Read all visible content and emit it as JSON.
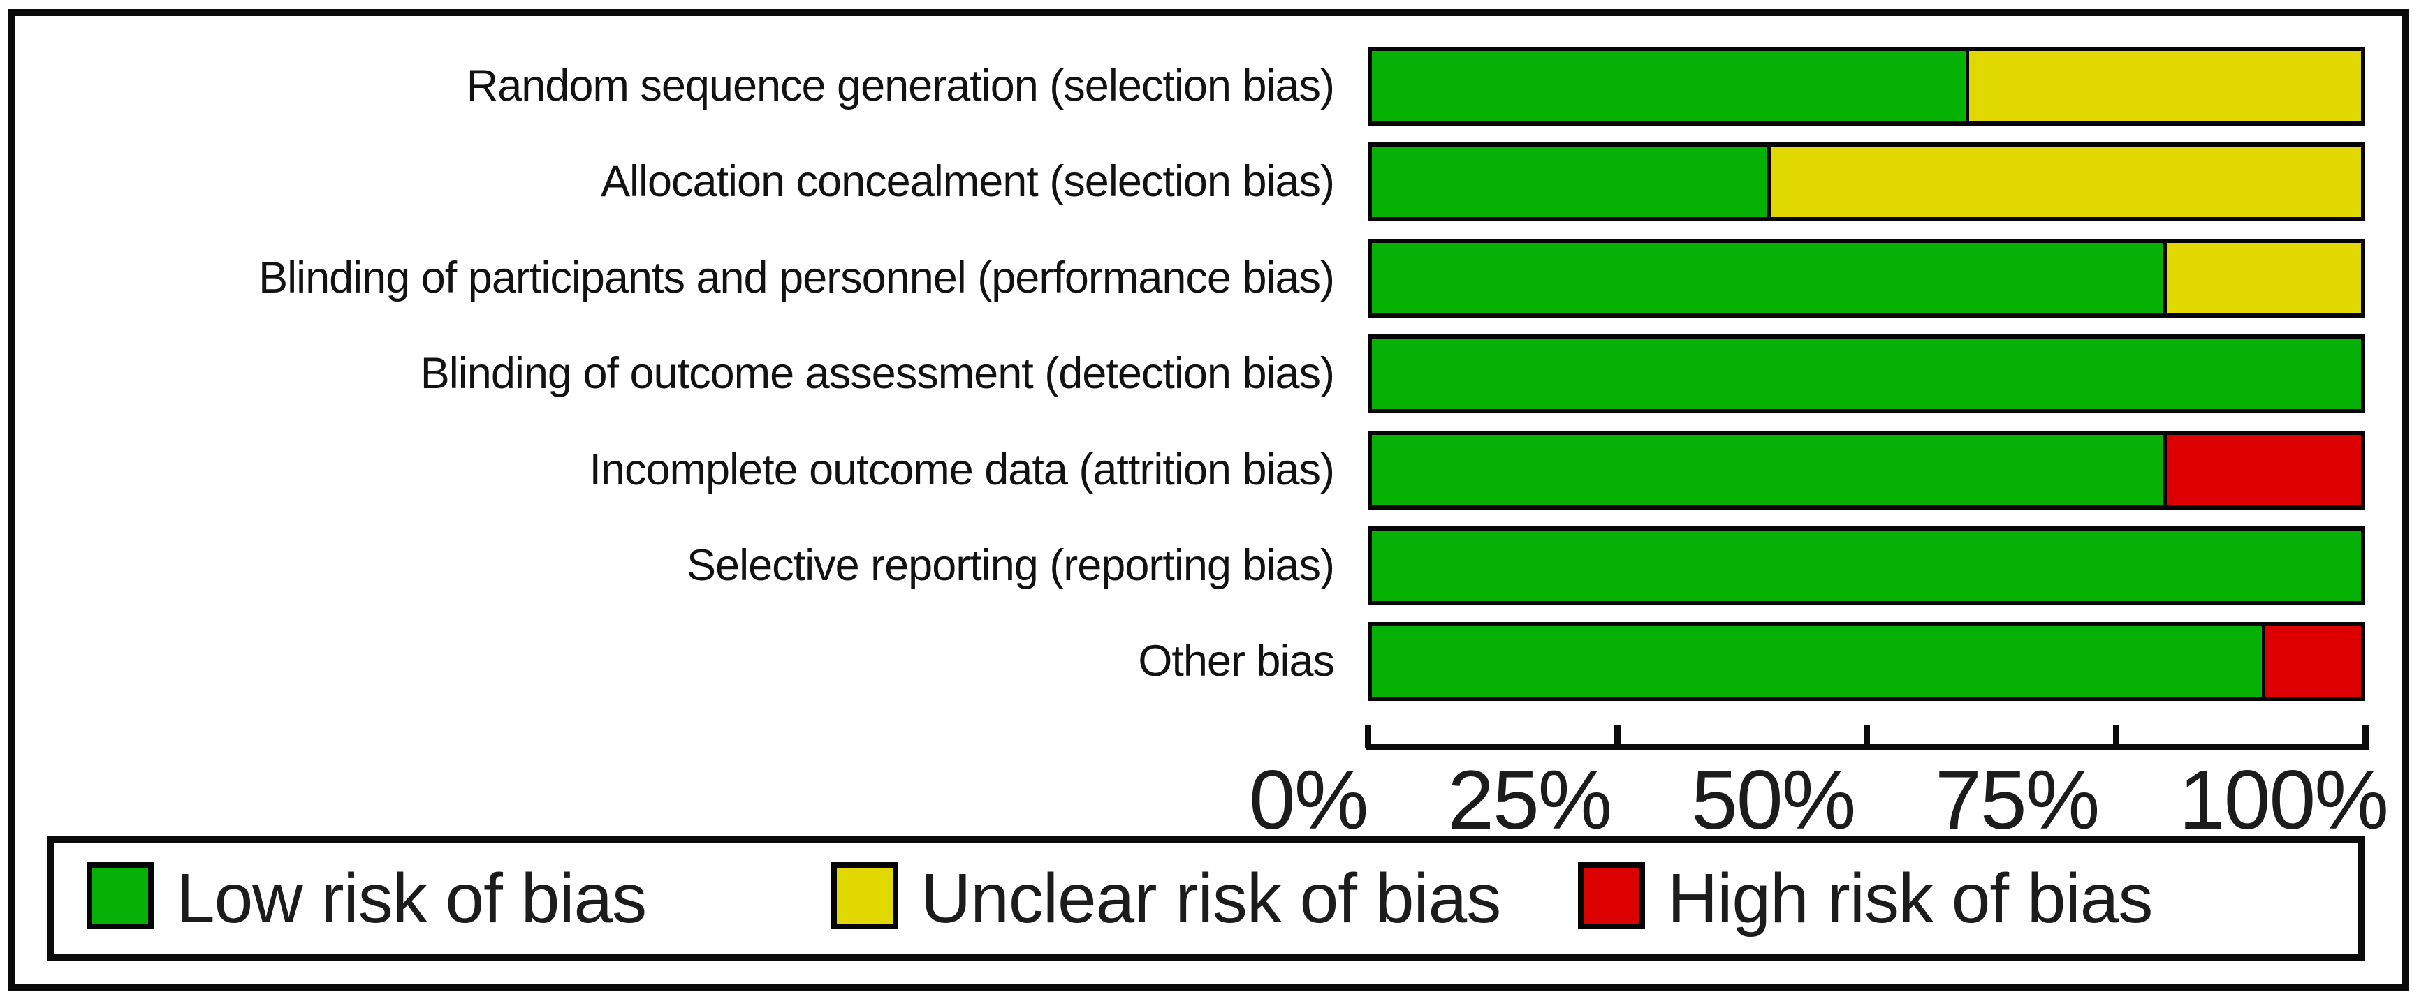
{
  "chart_data": {
    "type": "bar",
    "orientation": "horizontal-stacked",
    "title": "",
    "xlabel": "",
    "ylabel": "",
    "categories": [
      "Random sequence generation (selection bias)",
      "Allocation concealment (selection bias)",
      "Blinding of participants and personnel (performance bias)",
      "Blinding of outcome assessment (detection bias)",
      "Incomplete outcome data (attrition bias)",
      "Selective reporting (reporting bias)",
      "Other bias"
    ],
    "series": [
      {
        "name": "Low risk of bias",
        "color": "#04b104",
        "values": [
          60,
          40,
          80,
          100,
          80,
          100,
          90
        ]
      },
      {
        "name": "Unclear risk of bias",
        "color": "#e0d800",
        "values": [
          40,
          60,
          20,
          0,
          0,
          0,
          0
        ]
      },
      {
        "name": "High risk of bias",
        "color": "#dd0000",
        "values": [
          0,
          0,
          0,
          0,
          20,
          0,
          10
        ]
      }
    ],
    "x_axis": {
      "tick_labels": [
        "0%",
        "25%",
        "50%",
        "75%",
        "100%"
      ],
      "tick_values": [
        0,
        25,
        50,
        75,
        100
      ],
      "range": [
        0,
        100
      ],
      "grid": false
    },
    "legend": {
      "position": "bottom",
      "entries": [
        {
          "label": "Low risk of bias",
          "color": "#04b104"
        },
        {
          "label": "Unclear risk of bias",
          "color": "#e0d800"
        },
        {
          "label": "High risk of bias",
          "color": "#dd0000"
        }
      ]
    }
  },
  "colors": {
    "bar_border": "#050505",
    "frame_border": "#0b0b0b",
    "background": "#ffffff",
    "text": "#1c1c1c"
  }
}
